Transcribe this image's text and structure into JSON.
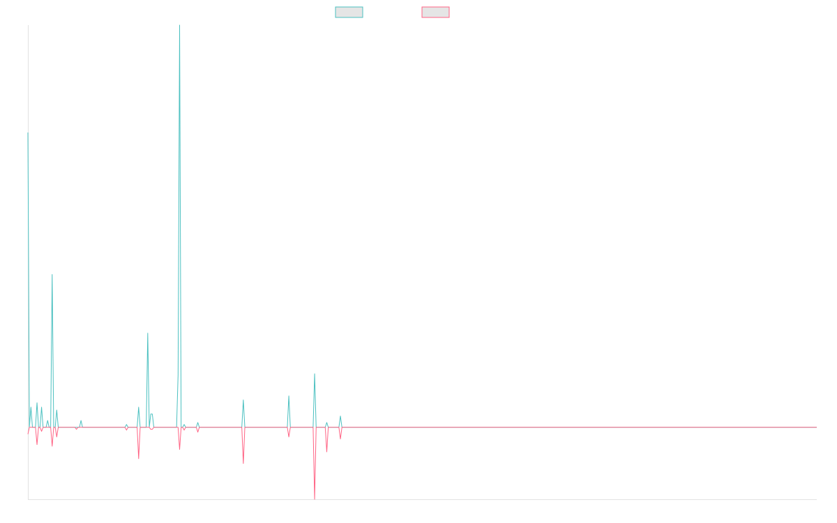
{
  "chart_data": {
    "type": "line",
    "title": "",
    "xlabel": "",
    "ylabel": "",
    "x_count": 521,
    "ylim": [
      -17.9,
      100
    ],
    "grid": false,
    "legend_position": "top-center",
    "series": [
      {
        "name": "",
        "color": "#4bc0c0",
        "points": [
          [
            0,
            73.3
          ],
          [
            2,
            5.0
          ],
          [
            6,
            6.1
          ],
          [
            9,
            5.0
          ],
          [
            13,
            1.7
          ],
          [
            16,
            38.0
          ],
          [
            19,
            4.3
          ],
          [
            35,
            1.7
          ],
          [
            65,
            0.7
          ],
          [
            73,
            5.0
          ],
          [
            79,
            23.4
          ],
          [
            81,
            3.3
          ],
          [
            82,
            3.3
          ],
          [
            99,
            13.0
          ],
          [
            100,
            100
          ],
          [
            103,
            0.7
          ],
          [
            112,
            1.2
          ],
          [
            142,
            6.8
          ],
          [
            172,
            7.8
          ],
          [
            189,
            13.3
          ],
          [
            197,
            1.2
          ],
          [
            206,
            2.8
          ]
        ]
      },
      {
        "name": "",
        "color": "#ff6384",
        "points": [
          [
            0,
            -1.7
          ],
          [
            6,
            -4.3
          ],
          [
            9,
            -1.0
          ],
          [
            16,
            -4.7
          ],
          [
            19,
            -2.4
          ],
          [
            32,
            -0.5
          ],
          [
            65,
            -0.7
          ],
          [
            73,
            -7.8
          ],
          [
            81,
            -0.5
          ],
          [
            82,
            -0.5
          ],
          [
            100,
            -5.5
          ],
          [
            103,
            -0.7
          ],
          [
            112,
            -1.2
          ],
          [
            142,
            -9.0
          ],
          [
            172,
            -2.4
          ],
          [
            189,
            -17.9
          ],
          [
            197,
            -6.1
          ],
          [
            206,
            -2.9
          ]
        ]
      }
    ]
  }
}
